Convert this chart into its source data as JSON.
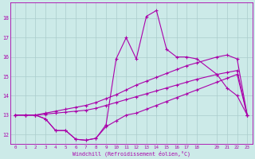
{
  "bg_color": "#cceae8",
  "grid_color": "#aacccc",
  "line_color": "#aa00aa",
  "marker": "+",
  "marker_size": 3,
  "marker_lw": 0.8,
  "line_width": 0.8,
  "xlim": [
    -0.5,
    23.5
  ],
  "ylim": [
    11.5,
    18.8
  ],
  "yticks": [
    12,
    13,
    14,
    15,
    16,
    17,
    18
  ],
  "xtick_vals": [
    0,
    1,
    2,
    3,
    4,
    5,
    6,
    7,
    8,
    9,
    10,
    11,
    12,
    13,
    14,
    15,
    16,
    17,
    18,
    20,
    21,
    22,
    23
  ],
  "xtick_labels": [
    "0",
    "1",
    "2",
    "3",
    "4",
    "5",
    "6",
    "7",
    "8",
    "9",
    "10",
    "11",
    "12",
    "13",
    "14",
    "15",
    "16",
    "17",
    "18",
    "20",
    "21",
    "22",
    "23"
  ],
  "xlabel": "Windchill (Refroidissement éolien,°C)",
  "series": [
    {
      "x": [
        0,
        1,
        2,
        3,
        4,
        5,
        6,
        7,
        8,
        9,
        10,
        11,
        12,
        13,
        14,
        15,
        16,
        17,
        18,
        20,
        21,
        22,
        23
      ],
      "y": [
        13.0,
        13.0,
        13.0,
        12.8,
        12.2,
        12.2,
        11.75,
        11.7,
        11.8,
        12.4,
        12.7,
        13.0,
        13.1,
        13.3,
        13.5,
        13.7,
        13.9,
        14.1,
        14.3,
        14.7,
        14.9,
        15.1,
        13.0
      ]
    },
    {
      "x": [
        0,
        1,
        2,
        3,
        4,
        5,
        6,
        7,
        8,
        9,
        10,
        11,
        12,
        13,
        14,
        15,
        16,
        17,
        18,
        20,
        21,
        22,
        23
      ],
      "y": [
        13.0,
        13.0,
        13.0,
        13.05,
        13.1,
        13.15,
        13.2,
        13.25,
        13.35,
        13.5,
        13.65,
        13.8,
        13.95,
        14.1,
        14.25,
        14.4,
        14.55,
        14.7,
        14.85,
        15.1,
        15.2,
        15.3,
        13.0
      ]
    },
    {
      "x": [
        0,
        1,
        2,
        3,
        4,
        5,
        6,
        7,
        8,
        9,
        10,
        11,
        12,
        13,
        14,
        15,
        16,
        17,
        18,
        20,
        21,
        22,
        23
      ],
      "y": [
        13.0,
        13.0,
        13.0,
        12.8,
        12.2,
        12.2,
        11.75,
        11.7,
        11.8,
        12.5,
        15.9,
        17.0,
        15.9,
        18.1,
        18.4,
        16.4,
        16.0,
        16.0,
        15.9,
        15.1,
        14.4,
        14.0,
        13.0
      ]
    },
    {
      "x": [
        0,
        1,
        2,
        3,
        4,
        5,
        6,
        7,
        8,
        9,
        10,
        11,
        12,
        13,
        14,
        15,
        16,
        17,
        18,
        20,
        21,
        22,
        23
      ],
      "y": [
        13.0,
        13.0,
        13.0,
        13.1,
        13.2,
        13.3,
        13.4,
        13.5,
        13.65,
        13.85,
        14.05,
        14.3,
        14.55,
        14.75,
        14.95,
        15.15,
        15.35,
        15.55,
        15.7,
        16.0,
        16.1,
        15.9,
        13.0
      ]
    }
  ]
}
